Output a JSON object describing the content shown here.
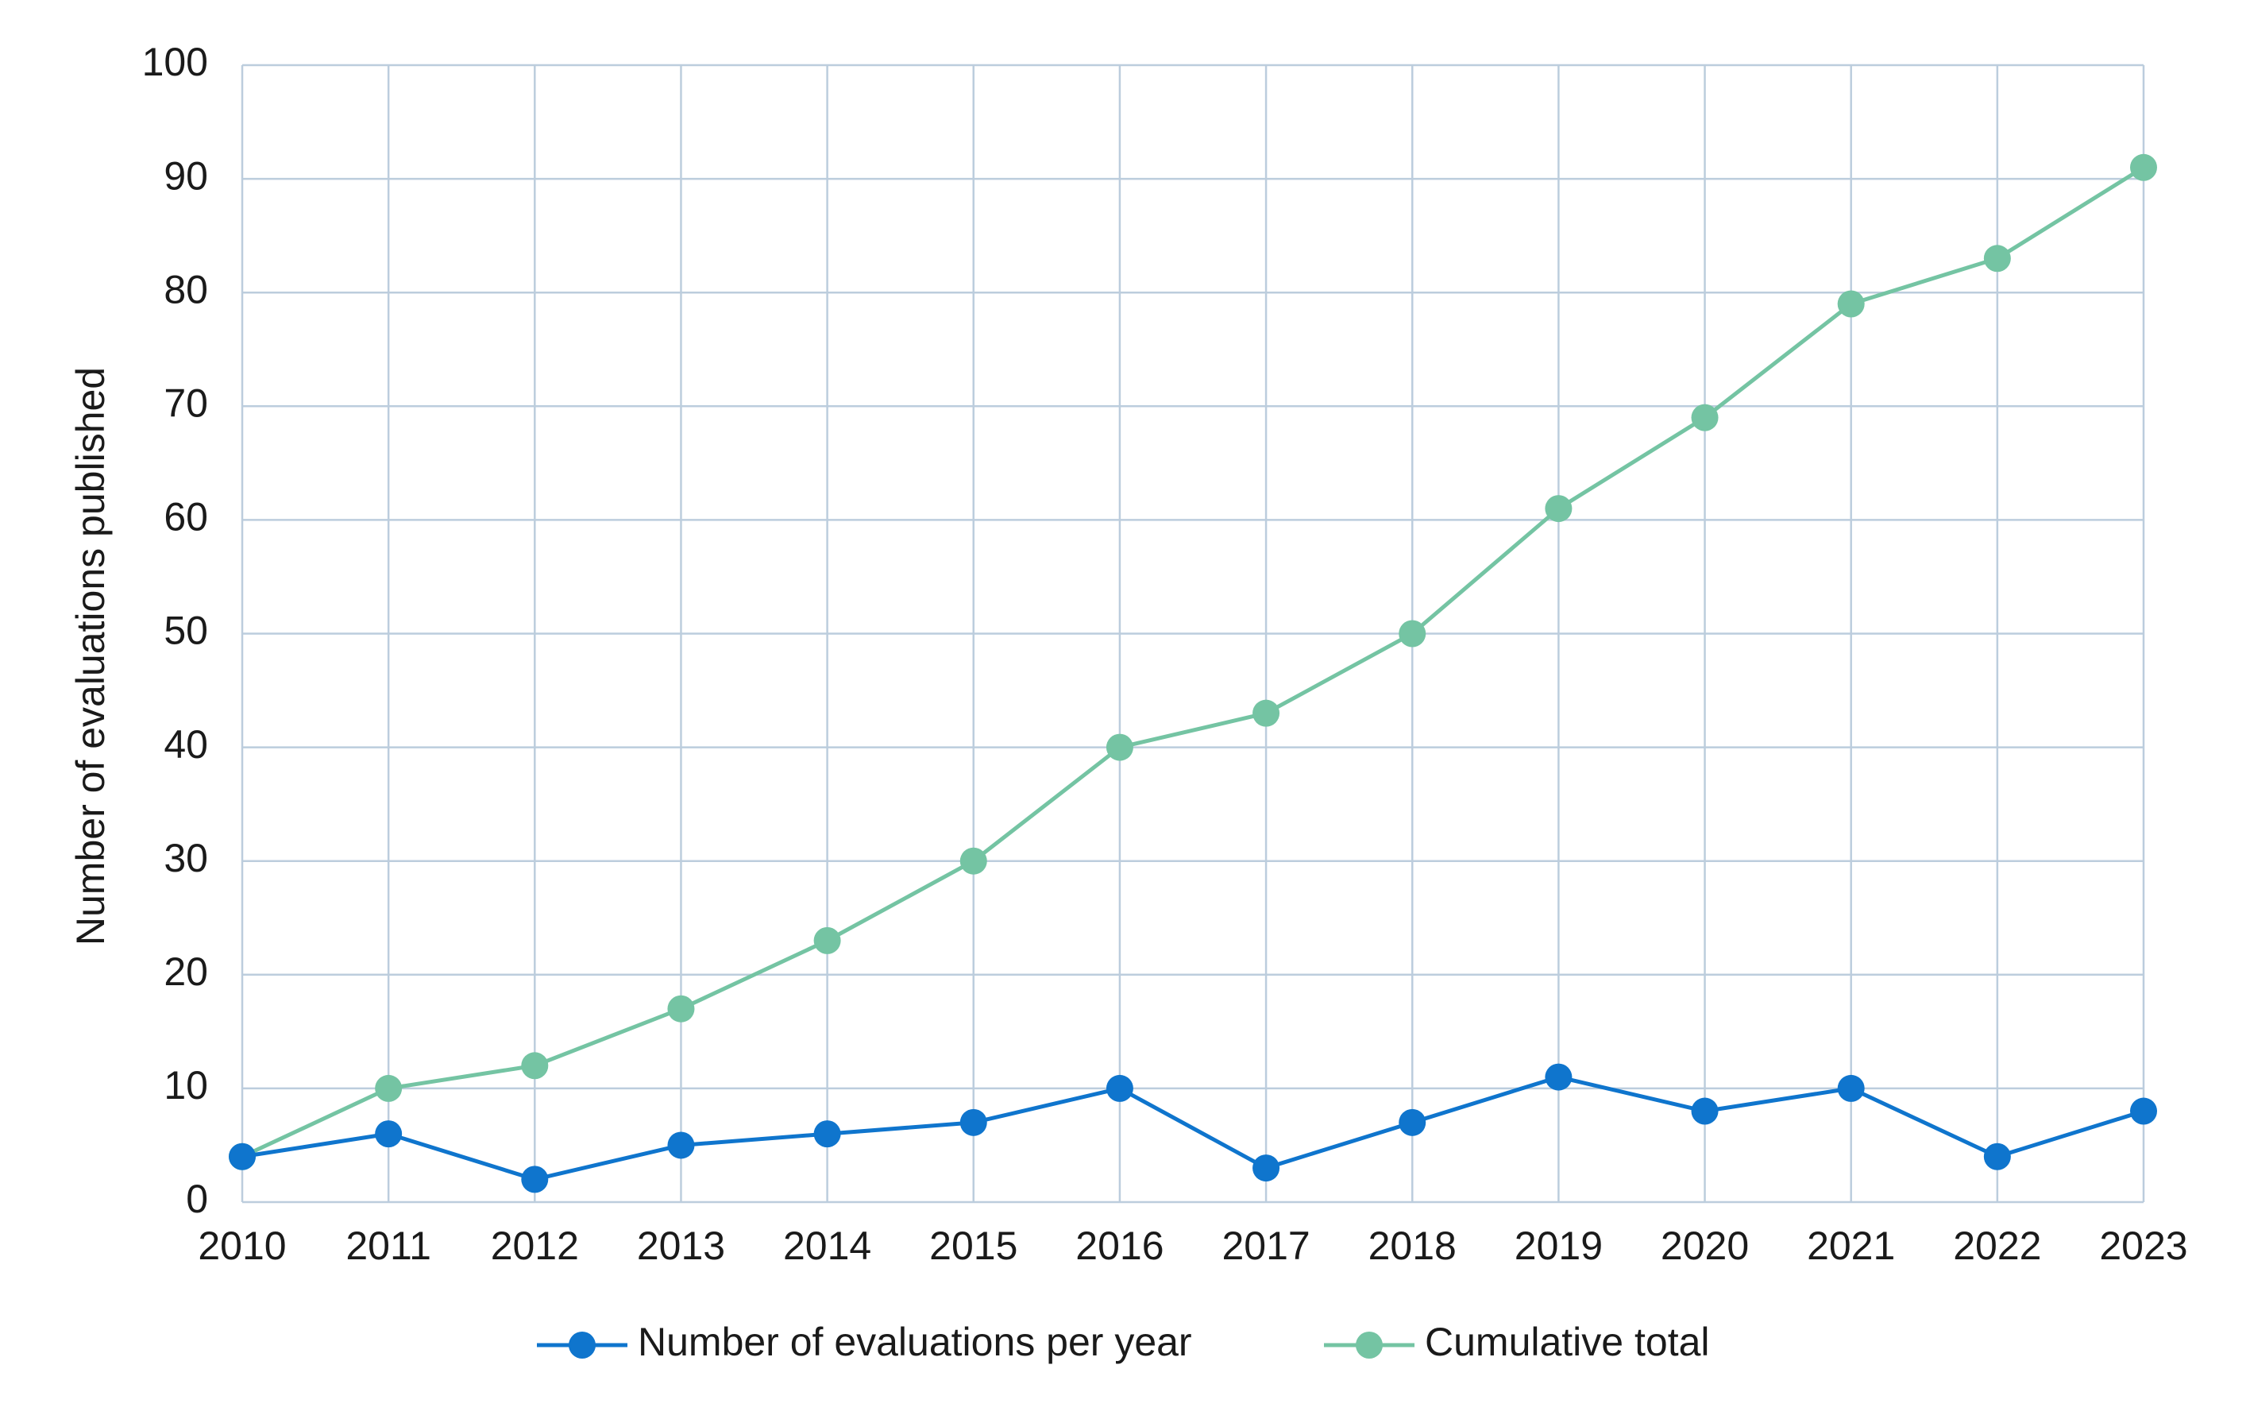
{
  "chart_data": {
    "type": "line",
    "y_label": "Number of evaluations published",
    "x": [
      2010,
      2011,
      2012,
      2013,
      2014,
      2015,
      2016,
      2017,
      2018,
      2019,
      2020,
      2021,
      2022,
      2023
    ],
    "xlim": [
      2010,
      2023
    ],
    "xticks": [
      2010,
      2011,
      2012,
      2013,
      2014,
      2015,
      2016,
      2017,
      2018,
      2019,
      2020,
      2021,
      2022,
      2023
    ],
    "ylim": [
      0,
      100
    ],
    "yticks": [
      0,
      10,
      20,
      30,
      40,
      50,
      60,
      70,
      80,
      90,
      100
    ],
    "grid": true,
    "legend": "bottom",
    "series": [
      {
        "name": "Number of evaluations per year",
        "color": "#0f75cd",
        "values": [
          4,
          6,
          2,
          5,
          6,
          7,
          10,
          3,
          7,
          11,
          8,
          10,
          4,
          8
        ]
      },
      {
        "name": "Cumulative total",
        "color": "#74c4a3",
        "values": [
          4,
          10,
          12,
          17,
          23,
          30,
          40,
          43,
          50,
          61,
          69,
          79,
          83,
          91
        ]
      }
    ]
  }
}
